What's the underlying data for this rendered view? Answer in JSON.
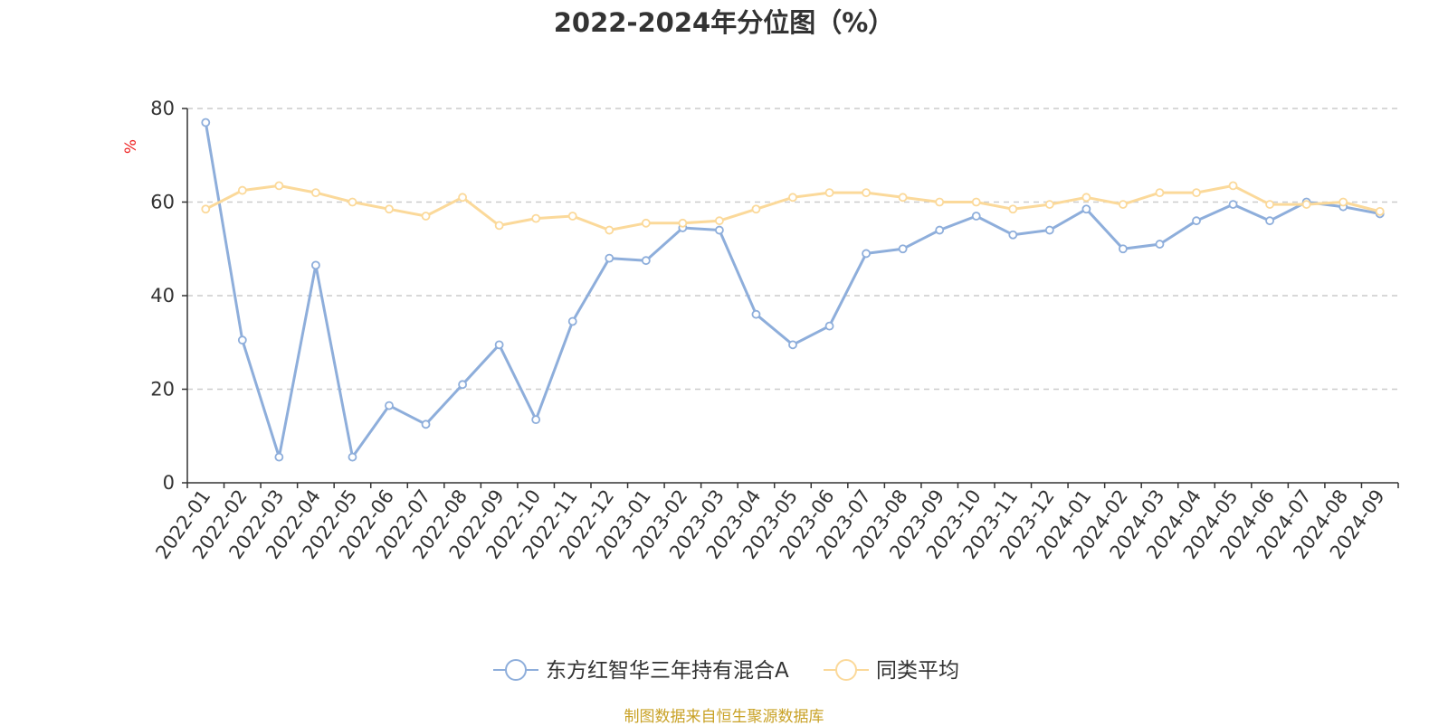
{
  "chart_data": {
    "type": "line",
    "title": "2022-2024年分位图（%）",
    "ylabel": "%",
    "ylim": [
      0,
      80
    ],
    "yticks": [
      0,
      20,
      40,
      60,
      80
    ],
    "grid": true,
    "legend_position": "bottom",
    "categories": [
      "2022-01",
      "2022-02",
      "2022-03",
      "2022-04",
      "2022-05",
      "2022-06",
      "2022-07",
      "2022-08",
      "2022-09",
      "2022-10",
      "2022-11",
      "2022-12",
      "2023-01",
      "2023-02",
      "2023-03",
      "2023-04",
      "2023-05",
      "2023-06",
      "2023-07",
      "2023-08",
      "2023-09",
      "2023-10",
      "2023-11",
      "2023-12",
      "2024-01",
      "2024-02",
      "2024-03",
      "2024-04",
      "2024-05",
      "2024-06",
      "2024-07",
      "2024-08",
      "2024-09"
    ],
    "series": [
      {
        "name": "东方红智华三年持有混合A",
        "color": "#8eaedb",
        "values": [
          77,
          30.5,
          5.5,
          46.5,
          5.5,
          16.5,
          12.5,
          21,
          29.5,
          13.5,
          34.5,
          48,
          47.5,
          54.5,
          54,
          36,
          29.5,
          33.5,
          49,
          50,
          54,
          57,
          53,
          54,
          58.5,
          50,
          51,
          56,
          59.5,
          56,
          60,
          59,
          57.5
        ]
      },
      {
        "name": "同类平均",
        "color": "#fbd99a",
        "values": [
          58.5,
          62.5,
          63.5,
          62,
          60,
          58.5,
          57,
          61,
          55,
          56.5,
          57,
          54,
          55.5,
          55.5,
          56,
          58.5,
          61,
          62,
          62,
          61,
          60,
          60,
          58.5,
          59.5,
          61,
          59.5,
          62,
          62,
          63.5,
          59.5,
          59.5,
          60,
          58
        ]
      }
    ]
  },
  "footer": {
    "source_note": "制图数据来自恒生聚源数据库"
  }
}
